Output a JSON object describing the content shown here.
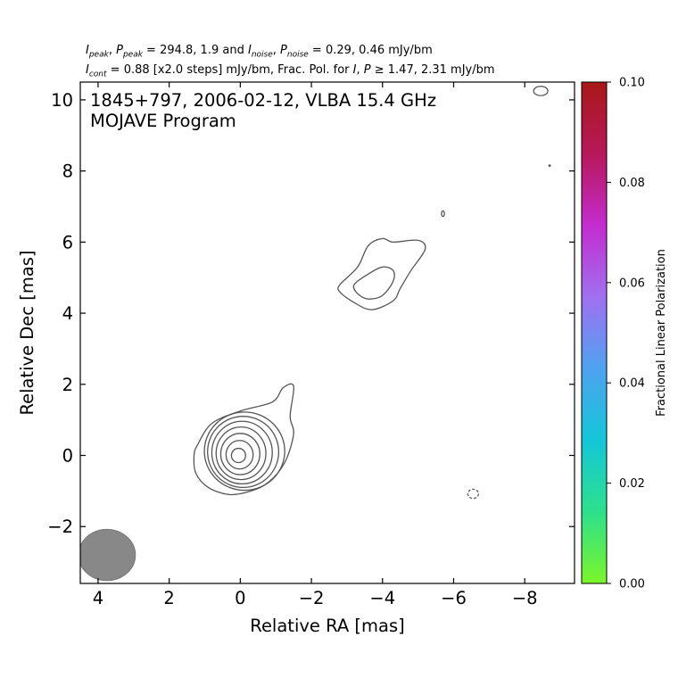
{
  "header": {
    "line1": {
      "i_sym": "I",
      "i_sub": "peak",
      "p_sym": "P",
      "p_sub": "peak",
      "mid": " = 294.8, 1.9 and ",
      "in_sym": "I",
      "in_sub": "noise",
      "pn_sym": "P",
      "pn_sub": "noise",
      "tail": " = 0.29, 0.46 mJy/bm"
    },
    "line2": {
      "i_sym": "I",
      "i_sub": "cont",
      "mid": " = 0.88 [x2.0 steps] mJy/bm, Frac. Pol. for ",
      "i2_sym": "I",
      "p2_sym": "P",
      "tail": " ≥ 1.47, 2.31 mJy/bm"
    }
  },
  "chart_data": {
    "type": "contour",
    "title_line1": "1845+797, 2006-02-12, VLBA 15.4 GHz",
    "title_line2": "MOJAVE Program",
    "xlabel": "Relative RA [mas]",
    "ylabel": "Relative Dec [mas]",
    "xlim": [
      4.5,
      -9.4
    ],
    "ylim": [
      -3.6,
      10.5
    ],
    "xticks": [
      4,
      2,
      0,
      -2,
      -4,
      -6,
      -8
    ],
    "yticks": [
      -2,
      0,
      2,
      4,
      6,
      8,
      10
    ],
    "xtick_labels": [
      "4",
      "2",
      "0",
      "−2",
      "−4",
      "−6",
      "−8"
    ],
    "ytick_labels": [
      "−2",
      "0",
      "2",
      "4",
      "6",
      "8",
      "10"
    ],
    "contour_color": "#555555",
    "core_contours": [
      {
        "cx": 0.05,
        "cy": 0.0,
        "rx": 0.2,
        "ry": 0.2
      },
      {
        "cx": 0.02,
        "cy": 0.02,
        "rx": 0.38,
        "ry": 0.4
      },
      {
        "cx": 0.0,
        "cy": 0.04,
        "rx": 0.55,
        "ry": 0.58
      },
      {
        "cx": -0.02,
        "cy": 0.06,
        "rx": 0.7,
        "ry": 0.74
      },
      {
        "cx": -0.05,
        "cy": 0.08,
        "rx": 0.85,
        "ry": 0.88
      },
      {
        "cx": -0.08,
        "cy": 0.1,
        "rx": 1.0,
        "ry": 1.0
      },
      {
        "cx": -0.12,
        "cy": 0.12,
        "rx": 1.13,
        "ry": 1.1
      }
    ],
    "outer_core_contour": [
      [
        1.2,
        0.3
      ],
      [
        0.8,
        0.9
      ],
      [
        0.0,
        1.25
      ],
      [
        -0.9,
        1.5
      ],
      [
        -1.2,
        1.9
      ],
      [
        -1.5,
        1.95
      ],
      [
        -1.4,
        1.1
      ],
      [
        -1.5,
        0.6
      ],
      [
        -1.25,
        -0.2
      ],
      [
        -0.8,
        -0.75
      ],
      [
        -0.3,
        -1.0
      ],
      [
        0.3,
        -1.1
      ],
      [
        0.9,
        -0.9
      ],
      [
        1.25,
        -0.5
      ],
      [
        1.3,
        0.0
      ]
    ],
    "jet_outer_contour": [
      [
        -2.8,
        4.8
      ],
      [
        -3.3,
        5.3
      ],
      [
        -3.6,
        5.9
      ],
      [
        -4.0,
        6.1
      ],
      [
        -4.3,
        6.0
      ],
      [
        -5.0,
        6.05
      ],
      [
        -5.2,
        5.8
      ],
      [
        -4.8,
        5.2
      ],
      [
        -4.5,
        4.7
      ],
      [
        -4.3,
        4.35
      ],
      [
        -3.7,
        4.1
      ],
      [
        -3.2,
        4.3
      ],
      [
        -2.8,
        4.6
      ]
    ],
    "jet_inner_contour": [
      [
        -3.2,
        4.8
      ],
      [
        -3.6,
        5.1
      ],
      [
        -4.0,
        5.3
      ],
      [
        -4.3,
        5.2
      ],
      [
        -4.3,
        4.9
      ],
      [
        -4.0,
        4.5
      ],
      [
        -3.6,
        4.4
      ],
      [
        -3.3,
        4.55
      ]
    ],
    "small_contours": [
      {
        "cx": -5.7,
        "cy": 6.8,
        "rx": 0.04,
        "ry": 0.08,
        "dashed": false
      },
      {
        "cx": -8.45,
        "cy": 10.25,
        "rx": 0.2,
        "ry": 0.13,
        "dashed": false
      },
      {
        "cx": -8.7,
        "cy": 8.15,
        "rx": 0.02,
        "ry": 0.02,
        "dashed": false
      },
      {
        "cx": -6.55,
        "cy": -1.08,
        "rx": 0.15,
        "ry": 0.13,
        "dashed": true
      }
    ],
    "beam": {
      "cx": 3.75,
      "cy": -2.8,
      "major": 0.8,
      "minor": 0.72,
      "color": "#888888"
    },
    "colorbar": {
      "label": "Fractional Linear Polarization",
      "range": [
        0.0,
        0.1
      ],
      "ticks": [
        0.0,
        0.02,
        0.04,
        0.06,
        0.08,
        0.1
      ],
      "tick_labels": [
        "0.00",
        "0.02",
        "0.04",
        "0.06",
        "0.08",
        "0.10"
      ],
      "colors": [
        "#7cf52a",
        "#2de08c",
        "#14c6d8",
        "#4fa2f0",
        "#a070f0",
        "#c42cd0",
        "#b8185a",
        "#a81818"
      ]
    }
  }
}
